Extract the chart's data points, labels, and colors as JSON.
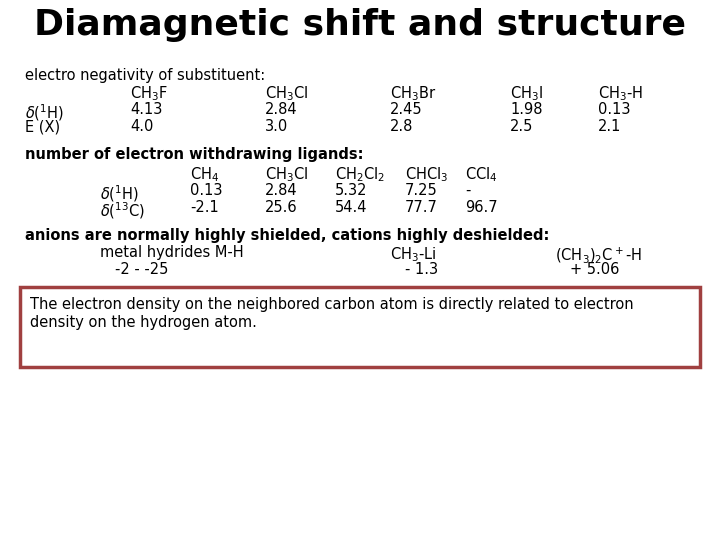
{
  "title": "Diamagnetic shift and structure",
  "background_color": "#ffffff",
  "box_color": "#a04040",
  "title_fontsize": 26,
  "body_fontsize": 10.5,
  "box_text_line1": "The electron density on the neighbored carbon atom is directly related to electron",
  "box_text_line2": "density on the hydrogen atom.",
  "section1_label": "electro negativity of substituent:",
  "section2_label": "number of electron withdrawing ligands:",
  "section3_label": "anions are normally highly shielded, cations highly deshielded:"
}
